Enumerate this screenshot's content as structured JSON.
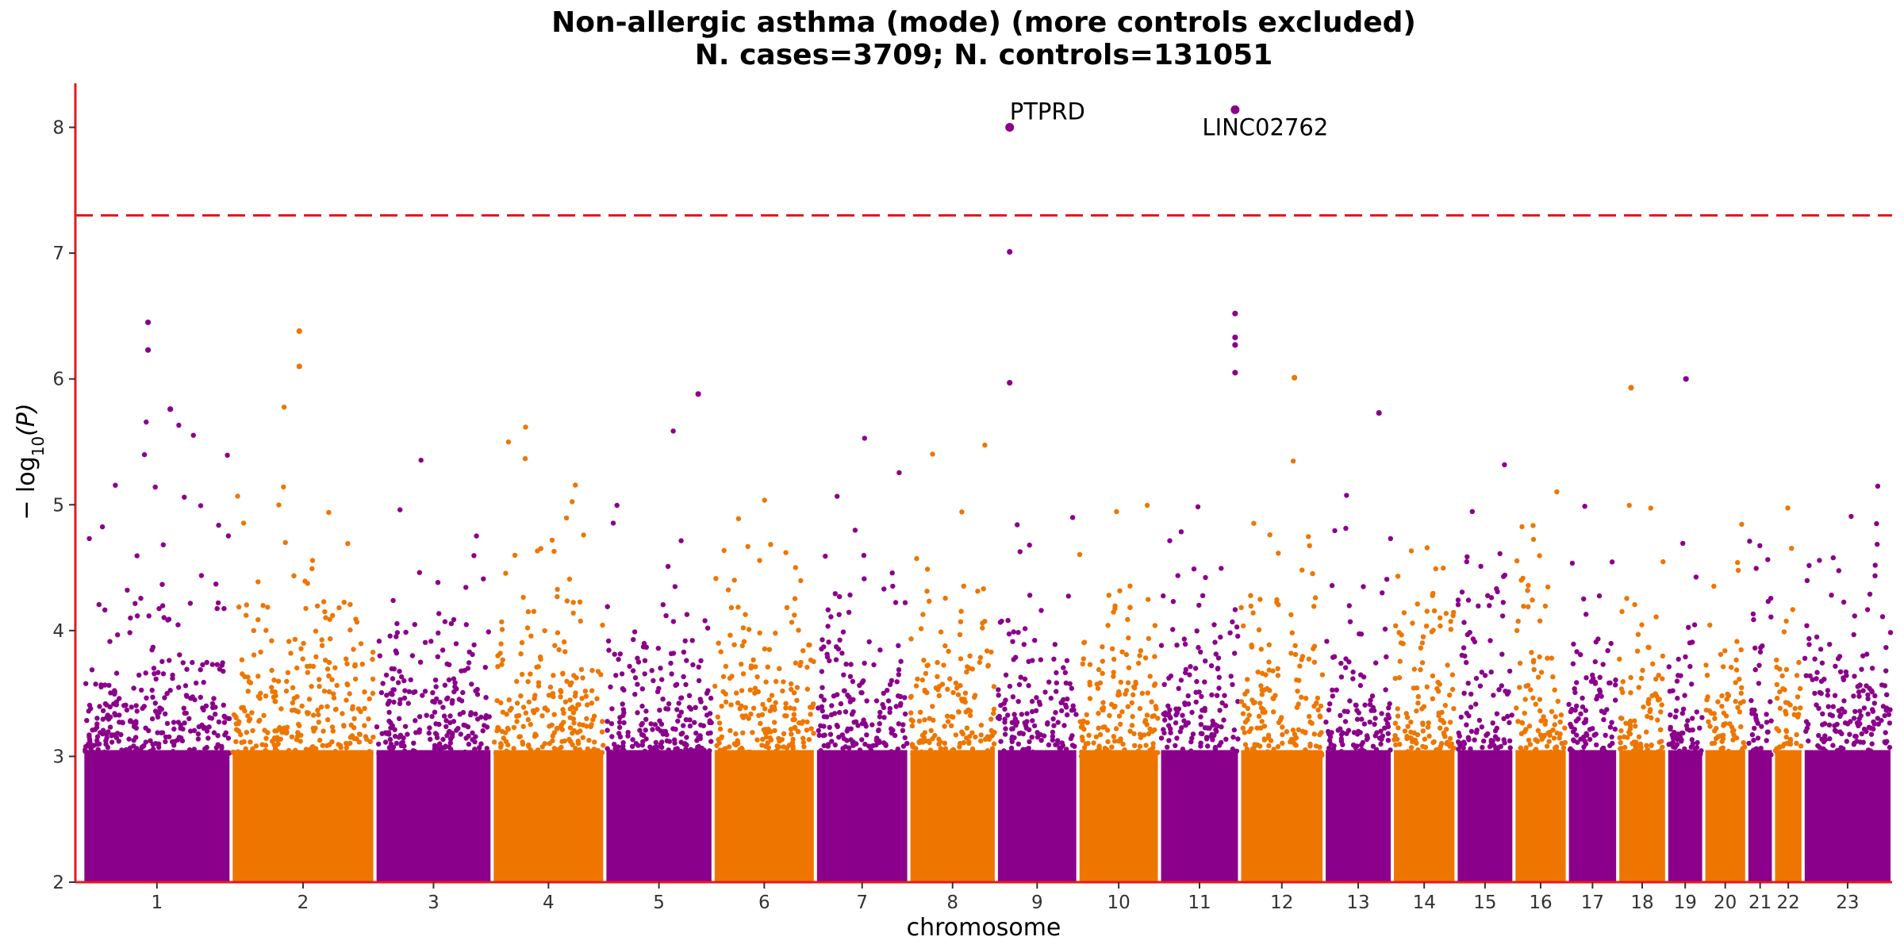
{
  "chart_data": {
    "type": "scatter",
    "title": "Non-allergic asthma (mode) (more controls excluded)",
    "subtitle": "N. cases=3709; N. controls=131051",
    "xlabel": "chromosome",
    "ylabel": "−log10(P)",
    "ylabel_main": "− log",
    "ylabel_sub": "10",
    "ylabel_arg": "(P)",
    "ylim": [
      2,
      8.35
    ],
    "yticks": [
      2,
      3,
      4,
      5,
      6,
      7,
      8
    ],
    "threshold": 7.3,
    "colors": {
      "odd": "#8B008B",
      "even": "#EE7600",
      "threshold": "#E41A1C",
      "axis": "#E41A1C"
    },
    "chromosomes": [
      {
        "label": "1",
        "start": 0,
        "end": 1.0,
        "peak": 6.45
      },
      {
        "label": "2",
        "start": 1.0,
        "end": 1.97,
        "peak": 6.38
      },
      {
        "label": "3",
        "start": 1.97,
        "end": 2.76,
        "peak": 5.42
      },
      {
        "label": "4",
        "start": 2.76,
        "end": 3.52,
        "peak": 5.62
      },
      {
        "label": "5",
        "start": 3.52,
        "end": 4.25,
        "peak": 5.88
      },
      {
        "label": "6",
        "start": 4.25,
        "end": 4.94,
        "peak": 5.3
      },
      {
        "label": "7",
        "start": 4.94,
        "end": 5.57,
        "peak": 5.65
      },
      {
        "label": "8",
        "start": 5.57,
        "end": 6.16,
        "peak": 5.64
      },
      {
        "label": "9",
        "start": 6.16,
        "end": 6.71,
        "peak": 7.01
      },
      {
        "label": "10",
        "start": 6.71,
        "end": 7.26,
        "peak": 5.58
      },
      {
        "label": "11",
        "start": 7.26,
        "end": 7.8,
        "peak": 6.52
      },
      {
        "label": "12",
        "start": 7.8,
        "end": 8.37,
        "peak": 6.01
      },
      {
        "label": "13",
        "start": 8.37,
        "end": 8.83,
        "peak": 5.73
      },
      {
        "label": "14",
        "start": 8.83,
        "end": 9.26,
        "peak": 4.97
      },
      {
        "label": "15",
        "start": 9.26,
        "end": 9.65,
        "peak": 5.42
      },
      {
        "label": "16",
        "start": 9.65,
        "end": 10.01,
        "peak": 5.51
      },
      {
        "label": "17",
        "start": 10.01,
        "end": 10.35,
        "peak": 5.46
      },
      {
        "label": "18",
        "start": 10.35,
        "end": 10.68,
        "peak": 5.93
      },
      {
        "label": "19",
        "start": 10.68,
        "end": 10.93,
        "peak": 6.0
      },
      {
        "label": "20",
        "start": 10.93,
        "end": 11.22,
        "peak": 5.0
      },
      {
        "label": "21",
        "start": 11.22,
        "end": 11.4,
        "peak": 5.0
      },
      {
        "label": "22",
        "start": 11.4,
        "end": 11.6,
        "peak": 5.42
      },
      {
        "label": "23",
        "start": 11.6,
        "end": 12.2,
        "peak": 5.18
      }
    ],
    "xlim": [
      -0.05,
      12.2
    ],
    "highlights": [
      {
        "gene": "PTPRD",
        "chrom": "9",
        "x": 6.25,
        "y": 8.0
      },
      {
        "gene": "LINC02762",
        "chrom": "11",
        "x": 7.77,
        "y": 8.14
      }
    ],
    "near_hits": [
      {
        "chrom": "9",
        "x": 6.25,
        "y": 7.01
      },
      {
        "chrom": "9",
        "x": 6.25,
        "y": 5.97
      },
      {
        "chrom": "1",
        "x": 0.44,
        "y": 6.45
      },
      {
        "chrom": "1",
        "x": 0.44,
        "y": 6.23
      },
      {
        "chrom": "2",
        "x": 1.46,
        "y": 6.38
      },
      {
        "chrom": "2",
        "x": 1.46,
        "y": 6.1
      },
      {
        "chrom": "11",
        "x": 7.77,
        "y": 6.52
      },
      {
        "chrom": "11",
        "x": 7.77,
        "y": 6.33
      },
      {
        "chrom": "11",
        "x": 7.77,
        "y": 6.27
      },
      {
        "chrom": "11",
        "x": 7.77,
        "y": 6.05
      },
      {
        "chrom": "12",
        "x": 8.17,
        "y": 6.01
      },
      {
        "chrom": "19",
        "x": 10.81,
        "y": 6.0
      },
      {
        "chrom": "18",
        "x": 10.44,
        "y": 5.93
      },
      {
        "chrom": "5",
        "x": 4.15,
        "y": 5.88
      },
      {
        "chrom": "1",
        "x": 0.59,
        "y": 5.76
      },
      {
        "chrom": "13",
        "x": 8.74,
        "y": 5.73
      }
    ]
  }
}
